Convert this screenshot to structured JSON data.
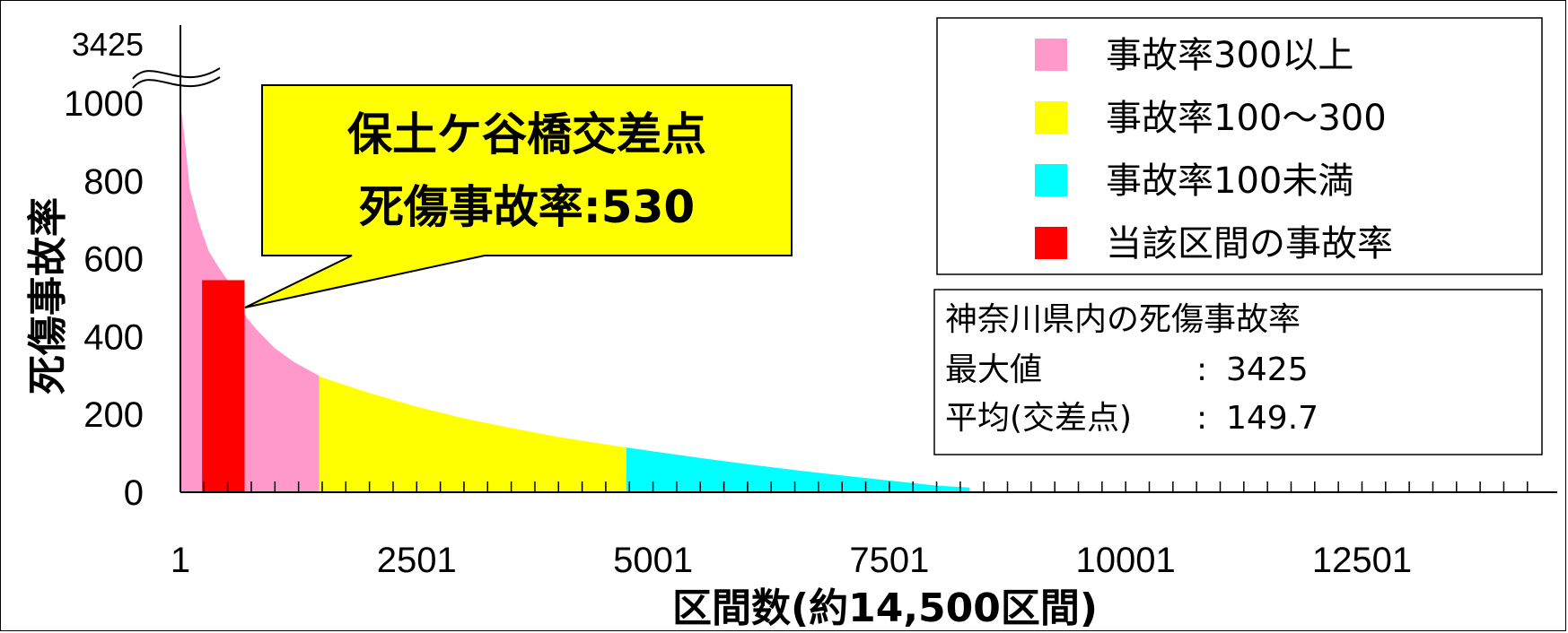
{
  "chart_data": {
    "type": "area",
    "title": "",
    "ylabel": "死傷事故率",
    "xlabel": "区間数(約14,500区間)",
    "x_total": 14500,
    "ylim": [
      0,
      1000
    ],
    "y_ticks": [
      0,
      200,
      400,
      600,
      800,
      1000
    ],
    "y_break_label": "3425",
    "x_ticks": [
      1,
      2501,
      5001,
      7501,
      10001,
      12501
    ],
    "x_tick_labels": [
      "1",
      "2501",
      "5001",
      "7501",
      "10001",
      "12501"
    ],
    "minor_tick_step": 250,
    "curve": {
      "x": [
        1,
        50,
        100,
        200,
        300,
        400,
        500,
        600,
        700,
        800,
        1000,
        1200,
        1500,
        2000,
        2500,
        3000,
        3500,
        4000,
        4500,
        5000,
        5500,
        6000,
        6500,
        7000,
        7500,
        8000,
        8350
      ],
      "y": [
        1000,
        900,
        780,
        690,
        620,
        580,
        545,
        500,
        450,
        420,
        370,
        335,
        295,
        255,
        220,
        190,
        165,
        142,
        123,
        105,
        88,
        72,
        57,
        43,
        30,
        17,
        12
      ]
    },
    "segments": [
      {
        "name": "事故率300以上",
        "x_start": 1,
        "x_end": 1470,
        "color": "#ff99cc"
      },
      {
        "name": "事故率100～300",
        "x_start": 1470,
        "x_end": 4720,
        "color": "#ffff00"
      },
      {
        "name": "事故率100未満",
        "x_start": 4720,
        "x_end": 8350,
        "color": "#00ffff"
      }
    ],
    "highlight": {
      "name": "当該区間の事故率",
      "x_start": 230,
      "x_end": 680,
      "value": 545,
      "color": "#ff0000"
    },
    "legend": {
      "position": "top-right",
      "entries": [
        {
          "label": "事故率300以上",
          "color": "#ff99cc"
        },
        {
          "label": "事故率100～300",
          "color": "#ffff00"
        },
        {
          "label": "事故率100未満",
          "color": "#00ffff"
        },
        {
          "label": "当該区間の事故率",
          "color": "#ff0000"
        }
      ]
    },
    "callout": {
      "line1": "保土ケ谷橋交差点",
      "line2": "死傷事故率:530",
      "fill": "#ffff00"
    },
    "stats": {
      "title": "神奈川県内の死傷事故率",
      "max_label": "最大値",
      "max_sep": ":",
      "max_value": "3425",
      "avg_label": "平均(交差点)",
      "avg_sep": ":",
      "avg_value": "149.7"
    }
  }
}
